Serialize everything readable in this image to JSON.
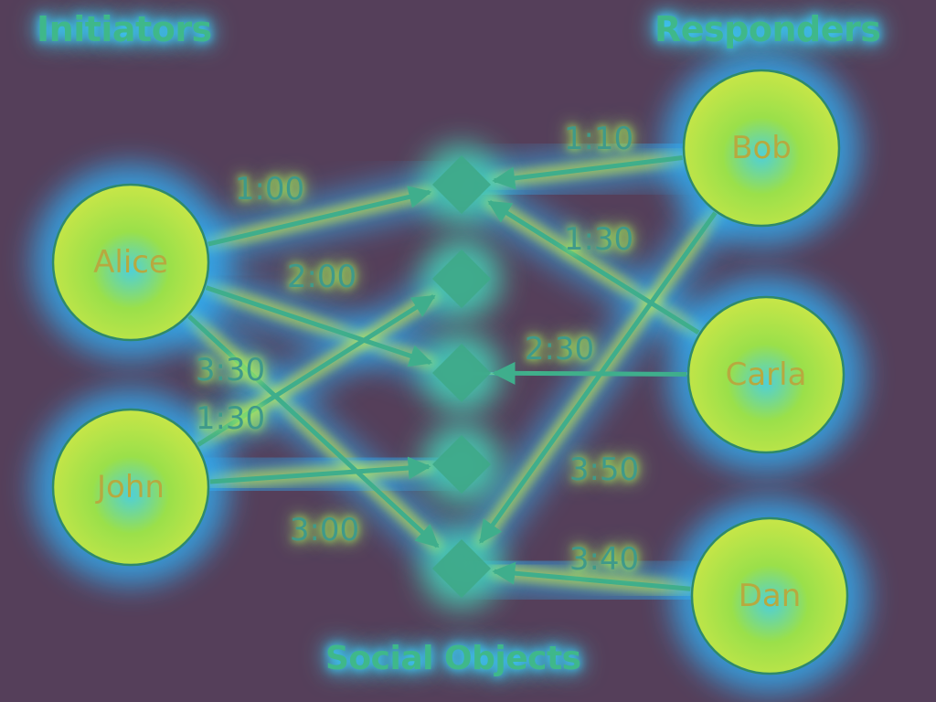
{
  "headings": {
    "initiators": "Initiators",
    "responders": "Responders",
    "social_objects": "Social Objects"
  },
  "initiators": [
    {
      "id": "alice",
      "label": "Alice"
    },
    {
      "id": "john",
      "label": "John"
    }
  ],
  "responders": [
    {
      "id": "bob",
      "label": "Bob"
    },
    {
      "id": "carla",
      "label": "Carla"
    },
    {
      "id": "dan",
      "label": "Dan"
    }
  ],
  "social_objects": [
    {
      "id": "obj1"
    },
    {
      "id": "obj2"
    },
    {
      "id": "obj3"
    },
    {
      "id": "obj4"
    },
    {
      "id": "obj5"
    }
  ],
  "edges": [
    {
      "from": "alice",
      "to": "obj1",
      "time": "1:00"
    },
    {
      "from": "alice",
      "to": "obj3",
      "time": "2:00"
    },
    {
      "from": "alice",
      "to": "obj5",
      "time": "3:30"
    },
    {
      "from": "john",
      "to": "obj2",
      "time": "1:30"
    },
    {
      "from": "john",
      "to": "obj4",
      "time": "3:00"
    },
    {
      "from": "bob",
      "to": "obj1",
      "time": "1:10"
    },
    {
      "from": "carla",
      "to": "obj1",
      "time": "1:30"
    },
    {
      "from": "carla",
      "to": "obj3",
      "time": "2:30"
    },
    {
      "from": "bob",
      "to": "obj5",
      "time": "3:50"
    },
    {
      "from": "dan",
      "to": "obj5",
      "time": "3:40"
    }
  ],
  "colors": {
    "background": "#553f5a",
    "glow_outer": "#2fb6ff",
    "glow_mid": "#45e0c0",
    "glow_inner": "#d6ef3c",
    "node_fill": "#86d24e",
    "node_stroke": "#2f8a6a",
    "edge": "#3fae8c",
    "diamond": "#3ea888"
  }
}
